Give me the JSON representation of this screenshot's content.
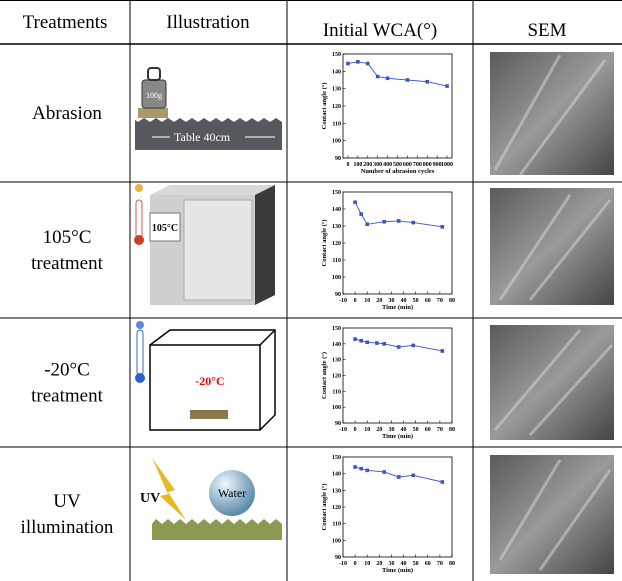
{
  "header": [
    "Treatments",
    "Illustration",
    "Initial WCA(°)",
    "SEM"
  ],
  "rows": [
    {
      "treatment": [
        "Abrasion"
      ],
      "illustration": [
        "100g",
        "Table 40cm"
      ],
      "chart": {
        "type": "line",
        "x": [
          0,
          100,
          200,
          300,
          400,
          600,
          800,
          1000
        ],
        "values": [
          144.5,
          145.5,
          144.5,
          137,
          136,
          135,
          134,
          131.5
        ],
        "xlim": [
          -50,
          1050
        ],
        "ylim": [
          90,
          150
        ],
        "xticks": [
          0,
          100,
          200,
          300,
          400,
          500,
          600,
          700,
          800,
          900,
          1000
        ],
        "yticks": [
          90,
          100,
          110,
          120,
          130,
          140,
          150
        ],
        "xlabel": "Number of abrasion cycles",
        "ylabel": "Contact angle (°)",
        "color": "#3a55c8"
      }
    },
    {
      "treatment": [
        "105°C",
        "treatment"
      ],
      "illustration": [
        "105°C"
      ],
      "chart": {
        "type": "line",
        "x": [
          0,
          5,
          10,
          24,
          36,
          48,
          72
        ],
        "values": [
          144,
          137,
          131,
          132.5,
          133,
          132,
          129.5
        ],
        "xlim": [
          -10,
          80
        ],
        "ylim": [
          90,
          150
        ],
        "xticks": [
          -10,
          0,
          10,
          20,
          30,
          40,
          50,
          60,
          70,
          80
        ],
        "yticks": [
          90,
          100,
          110,
          120,
          130,
          140,
          150
        ],
        "xlabel": "Time (min)",
        "ylabel": "Contact angle (°)",
        "color": "#3a55c8"
      }
    },
    {
      "treatment": [
        "-20°C",
        "treatment"
      ],
      "illustration": [
        "-20°C"
      ],
      "chart": {
        "type": "line",
        "x": [
          0,
          5,
          10,
          18,
          24,
          36,
          48,
          72
        ],
        "values": [
          143,
          142,
          141,
          140.5,
          140,
          138,
          139,
          135.5
        ],
        "xlim": [
          -10,
          80
        ],
        "ylim": [
          90,
          150
        ],
        "xticks": [
          -10,
          0,
          10,
          20,
          30,
          40,
          50,
          60,
          70,
          80
        ],
        "yticks": [
          90,
          100,
          110,
          120,
          130,
          140,
          150
        ],
        "xlabel": "Time (min)",
        "ylabel": "Contact angle (°)",
        "color": "#3a55c8"
      }
    },
    {
      "treatment": [
        "UV",
        "illumination"
      ],
      "illustration": [
        "UV",
        "Water"
      ],
      "chart": {
        "type": "line",
        "x": [
          0,
          5,
          10,
          24,
          36,
          48,
          72
        ],
        "values": [
          144,
          143,
          142,
          141,
          138,
          139,
          135
        ],
        "xlim": [
          -10,
          80
        ],
        "ylim": [
          90,
          150
        ],
        "xticks": [
          -10,
          0,
          10,
          20,
          30,
          40,
          50,
          60,
          70,
          80
        ],
        "yticks": [
          90,
          100,
          110,
          120,
          130,
          140,
          150
        ],
        "xlabel": "Time (min)",
        "ylabel": "Contact angle (°)",
        "color": "#3a55c8"
      }
    }
  ]
}
